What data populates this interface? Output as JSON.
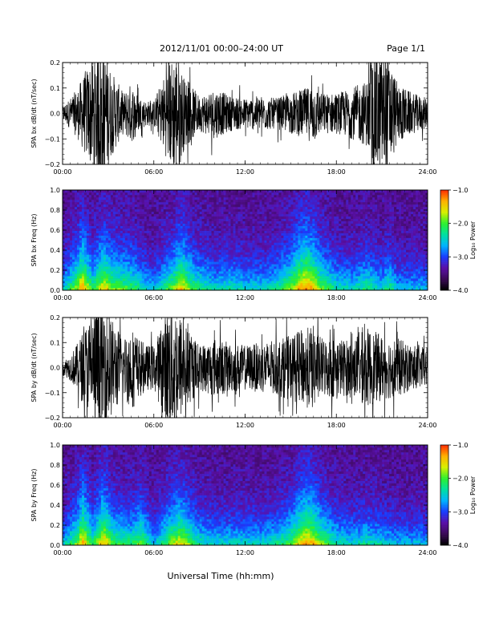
{
  "header": {
    "title": "2012/11/01  00:00–24:00 UT",
    "page": "Page 1/1"
  },
  "footer": {
    "xlabel": "Universal Time (hh:mm)"
  },
  "colors": {
    "trace": "#000000",
    "colormap": [
      "#000000",
      "#3a0a56",
      "#5a10a8",
      "#1a3cff",
      "#00b4ff",
      "#00e0a0",
      "#2ef02e",
      "#d8f000",
      "#ffb000",
      "#ff2a00"
    ]
  },
  "chart_data": [
    {
      "type": "line",
      "ylabel": "SPA bx dB/dt (nT/sec)",
      "xlim": [
        0,
        24
      ],
      "ylim": [
        -0.2,
        0.2
      ],
      "xticks": [
        "00:00",
        "06:00",
        "12:00",
        "18:00",
        "24:00"
      ],
      "yticks": [
        "0.2",
        "0.1",
        "0.0",
        "−0.1",
        "−0.2"
      ],
      "envelope": {
        "x": [
          0,
          0.5,
          1,
          1.5,
          2,
          2.4,
          2.8,
          3.2,
          4,
          4.5,
          5,
          5.5,
          6,
          7,
          7.5,
          8,
          9,
          10,
          11,
          12,
          13,
          14,
          15,
          16,
          16.5,
          17,
          18,
          19,
          20,
          20.5,
          21,
          21.5,
          22,
          23,
          24
        ],
        "amplitude": [
          0.03,
          0.06,
          0.1,
          0.17,
          0.22,
          0.25,
          0.25,
          0.17,
          0.08,
          0.12,
          0.07,
          0.05,
          0.05,
          0.2,
          0.25,
          0.14,
          0.07,
          0.1,
          0.07,
          0.06,
          0.07,
          0.06,
          0.08,
          0.1,
          0.12,
          0.08,
          0.08,
          0.1,
          0.13,
          0.25,
          0.25,
          0.22,
          0.12,
          0.08,
          0.06
        ]
      }
    },
    {
      "type": "heatmap",
      "ylabel": "SPA bx Freq (Hz)",
      "xlim": [
        0,
        24
      ],
      "ylim": [
        0,
        1
      ],
      "xticks": [
        "00:00",
        "06:00",
        "12:00",
        "18:00",
        "24:00"
      ],
      "yticks": [
        "1.0",
        "0.8",
        "0.6",
        "0.4",
        "0.2",
        "0.0"
      ],
      "colorbar": {
        "label": "Log₁₀ Power",
        "range": [
          -4,
          -1
        ],
        "ticks": [
          "−1.0",
          "−2.0",
          "−3.0",
          "−4.0"
        ]
      },
      "activity": {
        "x": [
          0,
          1,
          1.3,
          2,
          2.7,
          3.3,
          4.5,
          5.5,
          6,
          7.3,
          7.8,
          8.5,
          9,
          10,
          11,
          12,
          13,
          14,
          15,
          15.5,
          16,
          16.5,
          17,
          18,
          19,
          20,
          21,
          21.5,
          22,
          23,
          24
        ],
        "level": [
          0.3,
          0.6,
          0.75,
          0.45,
          0.7,
          0.55,
          0.5,
          0.35,
          0.3,
          0.55,
          0.7,
          0.5,
          0.45,
          0.35,
          0.4,
          0.35,
          0.35,
          0.4,
          0.55,
          0.7,
          0.8,
          0.7,
          0.55,
          0.4,
          0.35,
          0.45,
          0.35,
          0.45,
          0.3,
          0.3,
          0.3
        ]
      }
    },
    {
      "type": "line",
      "ylabel": "SPA by dB/dt (nT/sec)",
      "xlim": [
        0,
        24
      ],
      "ylim": [
        -0.2,
        0.2
      ],
      "xticks": [
        "00:00",
        "06:00",
        "12:00",
        "18:00",
        "24:00"
      ],
      "yticks": [
        "0.2",
        "0.1",
        "0.0",
        "−0.1",
        "−0.2"
      ],
      "envelope": {
        "x": [
          0,
          0.5,
          1,
          1.5,
          2,
          2.4,
          2.8,
          3.2,
          4,
          4.5,
          5,
          5.5,
          6,
          7,
          7.5,
          8,
          9,
          10,
          11,
          12,
          13,
          14,
          15,
          16,
          16.5,
          17,
          18,
          19,
          20,
          21,
          22,
          23,
          24
        ],
        "amplitude": [
          0.03,
          0.05,
          0.1,
          0.17,
          0.22,
          0.25,
          0.25,
          0.2,
          0.12,
          0.17,
          0.12,
          0.09,
          0.09,
          0.25,
          0.25,
          0.18,
          0.09,
          0.12,
          0.1,
          0.09,
          0.1,
          0.11,
          0.13,
          0.16,
          0.17,
          0.12,
          0.12,
          0.11,
          0.16,
          0.13,
          0.12,
          0.09,
          0.08
        ]
      }
    },
    {
      "type": "heatmap",
      "ylabel": "SPA by Freq (Hz)",
      "xlim": [
        0,
        24
      ],
      "ylim": [
        0,
        1
      ],
      "xticks": [
        "00:00",
        "06:00",
        "12:00",
        "18:00",
        "24:00"
      ],
      "yticks": [
        "1.0",
        "0.8",
        "0.6",
        "0.4",
        "0.2",
        "0.0"
      ],
      "colorbar": {
        "label": "Log₁₀ Power",
        "range": [
          -4,
          -1
        ],
        "ticks": [
          "−1.0",
          "−2.0",
          "−3.0",
          "−4.0"
        ]
      },
      "activity": {
        "x": [
          0,
          1,
          1.3,
          2,
          2.7,
          3.3,
          4.5,
          5.2,
          6,
          7.3,
          7.8,
          8.5,
          9,
          10,
          11,
          12,
          13,
          14,
          15,
          15.5,
          16,
          16.5,
          17,
          18,
          19,
          20,
          21,
          22,
          23,
          24
        ],
        "level": [
          0.3,
          0.55,
          0.75,
          0.45,
          0.75,
          0.5,
          0.45,
          0.55,
          0.3,
          0.6,
          0.65,
          0.5,
          0.4,
          0.35,
          0.35,
          0.35,
          0.35,
          0.4,
          0.5,
          0.65,
          0.75,
          0.7,
          0.55,
          0.4,
          0.35,
          0.4,
          0.35,
          0.3,
          0.3,
          0.3
        ]
      }
    }
  ]
}
